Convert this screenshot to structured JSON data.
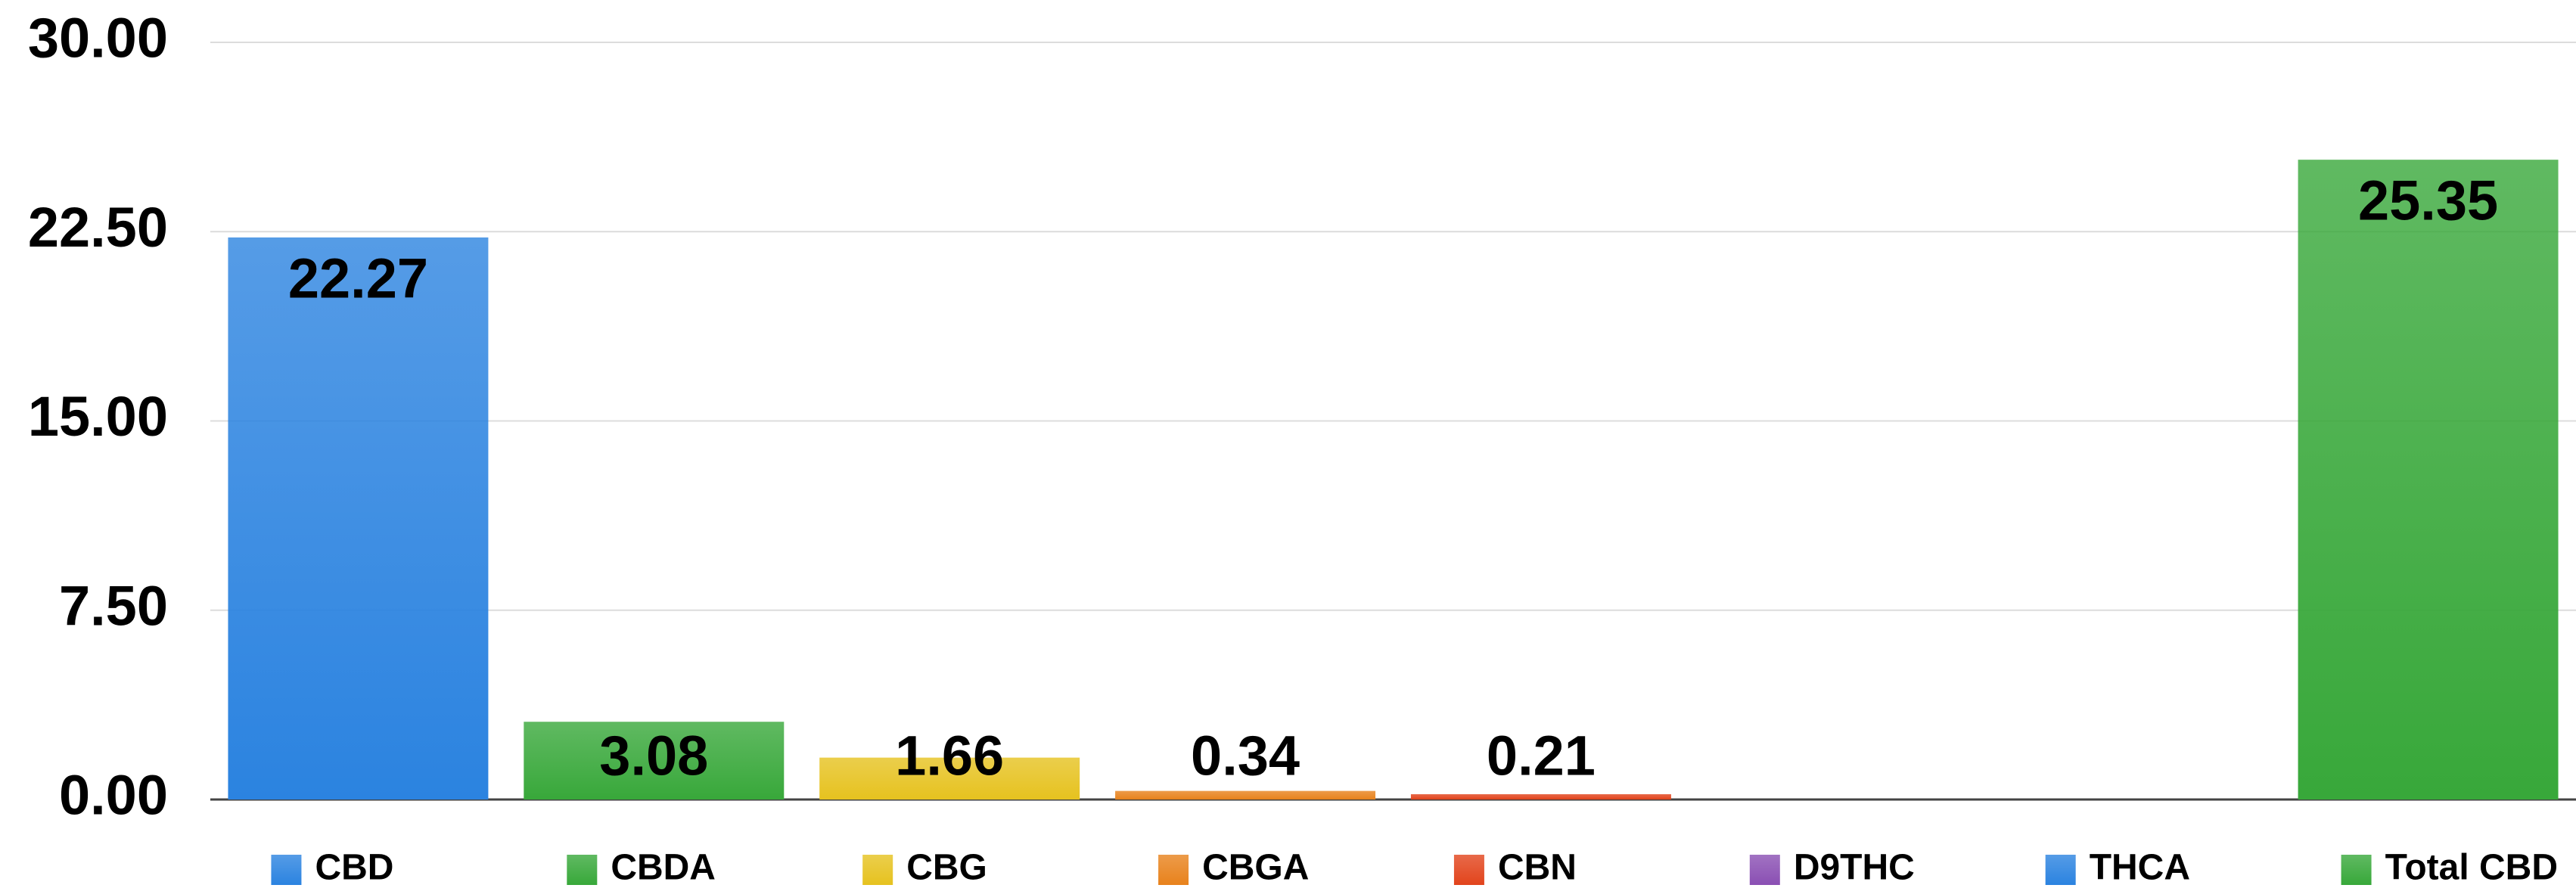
{
  "chart_data": {
    "type": "bar",
    "categories": [
      "CBD",
      "CBDA",
      "CBG",
      "CBGA",
      "CBN",
      "D9THC",
      "THCA",
      "Total CBD"
    ],
    "values": [
      22.27,
      3.08,
      1.66,
      0.34,
      0.21,
      null,
      null,
      25.35
    ],
    "colors": [
      "#2b83e0",
      "#38a83a",
      "#e6c21f",
      "#e8821c",
      "#e2441c",
      "#8a4fb3",
      "#2b83e0",
      "#38a83a"
    ],
    "ylim": [
      0,
      30
    ],
    "yticks": [
      {
        "value": 0,
        "label": "0.00"
      },
      {
        "value": 7.5,
        "label": "7.50"
      },
      {
        "value": 15,
        "label": "15.00"
      },
      {
        "value": 22.5,
        "label": "22.50"
      },
      {
        "value": 30,
        "label": "30.00"
      }
    ],
    "grid": true,
    "legend": "bottom"
  }
}
